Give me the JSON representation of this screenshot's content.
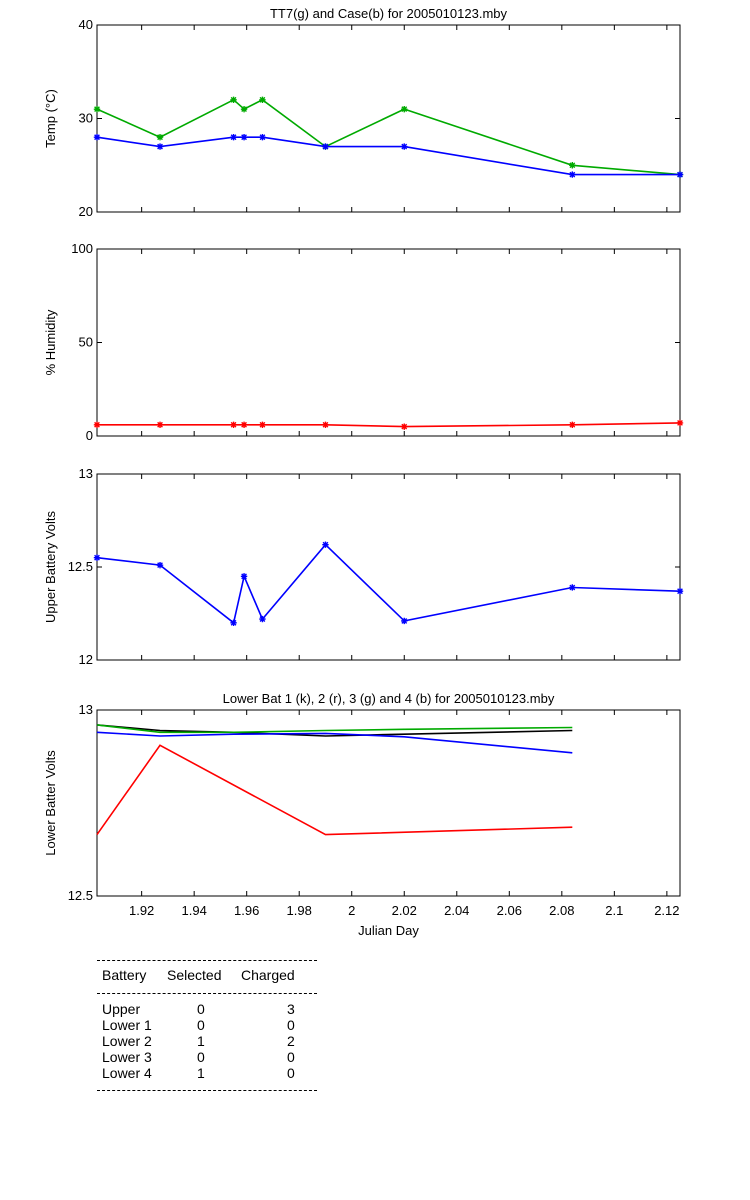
{
  "chart_data": [
    {
      "type": "line",
      "title": "TT7(g) and Case(b) for 2005010123.mby",
      "xlabel": "",
      "ylabel": "Temp  (°C)",
      "xlim": [
        1.903,
        2.125
      ],
      "ylim": [
        20,
        40
      ],
      "yticks": [
        20,
        30,
        40
      ],
      "grid": false,
      "series": [
        {
          "color": "#00aa00",
          "markers": true,
          "x": [
            1.903,
            1.927,
            1.955,
            1.959,
            1.966,
            1.99,
            2.02,
            2.084,
            2.125
          ],
          "values": [
            31,
            28,
            32,
            31,
            32,
            27,
            31,
            25,
            24
          ]
        },
        {
          "color": "#0000ff",
          "markers": true,
          "x": [
            1.903,
            1.927,
            1.955,
            1.959,
            1.966,
            1.99,
            2.02,
            2.084,
            2.125
          ],
          "values": [
            28,
            27,
            28,
            28,
            28,
            27,
            27,
            24,
            24
          ]
        }
      ]
    },
    {
      "type": "line",
      "title": "",
      "xlabel": "",
      "ylabel": "% Humidity",
      "xlim": [
        1.903,
        2.125
      ],
      "ylim": [
        0,
        100
      ],
      "yticks": [
        0,
        50,
        100
      ],
      "grid": false,
      "series": [
        {
          "color": "#ff0000",
          "markers": true,
          "x": [
            1.903,
            1.927,
            1.955,
            1.959,
            1.966,
            1.99,
            2.02,
            2.084,
            2.125
          ],
          "values": [
            6,
            6,
            6,
            6,
            6,
            6,
            5,
            6,
            7
          ]
        }
      ]
    },
    {
      "type": "line",
      "title": "",
      "xlabel": "",
      "ylabel": "Upper Battery Volts",
      "xlim": [
        1.903,
        2.125
      ],
      "ylim": [
        12,
        13
      ],
      "yticks": [
        12,
        12.5,
        13
      ],
      "grid": false,
      "series": [
        {
          "color": "#0000ff",
          "markers": true,
          "x": [
            1.903,
            1.927,
            1.955,
            1.959,
            1.966,
            1.99,
            2.02,
            2.084,
            2.125
          ],
          "values": [
            12.55,
            12.51,
            12.2,
            12.45,
            12.22,
            12.62,
            12.21,
            12.39,
            12.37
          ]
        }
      ]
    },
    {
      "type": "line",
      "title": "Lower Bat 1 (k), 2 (r), 3 (g) and 4 (b) for 2005010123.mby",
      "xlabel": "Julian Day",
      "ylabel": "Lower Batter Volts",
      "xlim": [
        1.903,
        2.125
      ],
      "ylim": [
        12.5,
        13
      ],
      "yticks": [
        12.5,
        13
      ],
      "xticks": [
        1.92,
        1.94,
        1.96,
        1.98,
        2,
        2.02,
        2.04,
        2.06,
        2.08,
        2.1,
        2.12
      ],
      "xticklabels": [
        "1.92",
        "1.94",
        "1.96",
        "1.98",
        "2",
        "2.02",
        "2.04",
        "2.06",
        "2.08",
        "2.1",
        "2.12"
      ],
      "grid": false,
      "series": [
        {
          "color": "#000000",
          "markers": false,
          "x": [
            1.903,
            1.927,
            1.955,
            1.99,
            2.02,
            2.084
          ],
          "values": [
            12.96,
            12.945,
            12.94,
            12.93,
            12.935,
            12.945
          ]
        },
        {
          "color": "#ff0000",
          "markers": false,
          "x": [
            1.903,
            1.927,
            1.99,
            2.084
          ],
          "values": [
            12.665,
            12.905,
            12.665,
            12.685
          ]
        },
        {
          "color": "#00aa00",
          "markers": false,
          "x": [
            1.903,
            1.927,
            1.955,
            1.99,
            2.02,
            2.084
          ],
          "values": [
            12.96,
            12.94,
            12.94,
            12.945,
            12.948,
            12.953
          ]
        },
        {
          "color": "#0000ff",
          "markers": false,
          "x": [
            1.903,
            1.927,
            1.955,
            1.99,
            2.02,
            2.084
          ],
          "values": [
            12.94,
            12.93,
            12.935,
            12.937,
            12.928,
            12.885
          ]
        }
      ]
    }
  ],
  "battery_table": {
    "headers": [
      "Battery",
      "Selected",
      "Charged"
    ],
    "rows": [
      {
        "battery": "Upper",
        "selected": "0",
        "charged": "3"
      },
      {
        "battery": "Lower 1",
        "selected": "0",
        "charged": "0"
      },
      {
        "battery": "Lower 2",
        "selected": "1",
        "charged": "2"
      },
      {
        "battery": "Lower 3",
        "selected": "0",
        "charged": "0"
      },
      {
        "battery": "Lower 4",
        "selected": "1",
        "charged": "0"
      }
    ]
  }
}
